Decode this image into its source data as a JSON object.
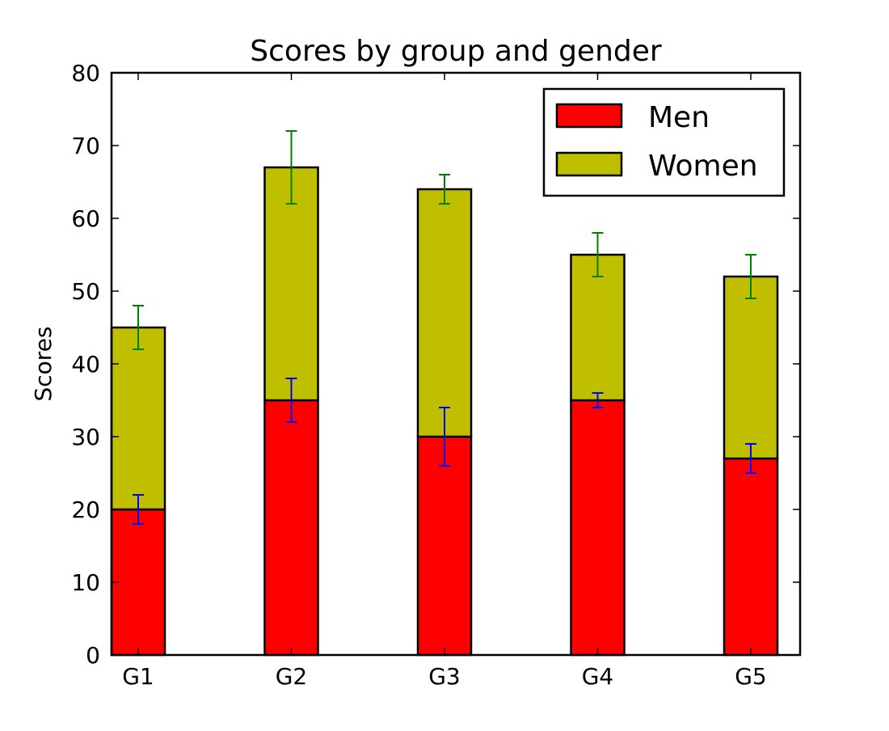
{
  "chart_data": {
    "type": "bar",
    "stacked": true,
    "title": "Scores by group and gender",
    "xlabel": "",
    "ylabel": "Scores",
    "categories": [
      "G1",
      "G2",
      "G3",
      "G4",
      "G5"
    ],
    "ylim": [
      0,
      80
    ],
    "yticks": [
      0,
      10,
      20,
      30,
      40,
      50,
      60,
      70,
      80
    ],
    "grid": false,
    "legend_position": "top-right",
    "series": [
      {
        "name": "Men",
        "values": [
          20,
          35,
          30,
          35,
          27
        ],
        "errors": [
          2,
          3,
          4,
          1,
          2
        ],
        "color": "#ff0000",
        "error_color": "#0000ff"
      },
      {
        "name": "Women",
        "values": [
          25,
          32,
          34,
          20,
          25
        ],
        "errors": [
          3,
          5,
          2,
          3,
          3
        ],
        "color": "#bfbf00",
        "error_color": "#008000"
      }
    ]
  }
}
